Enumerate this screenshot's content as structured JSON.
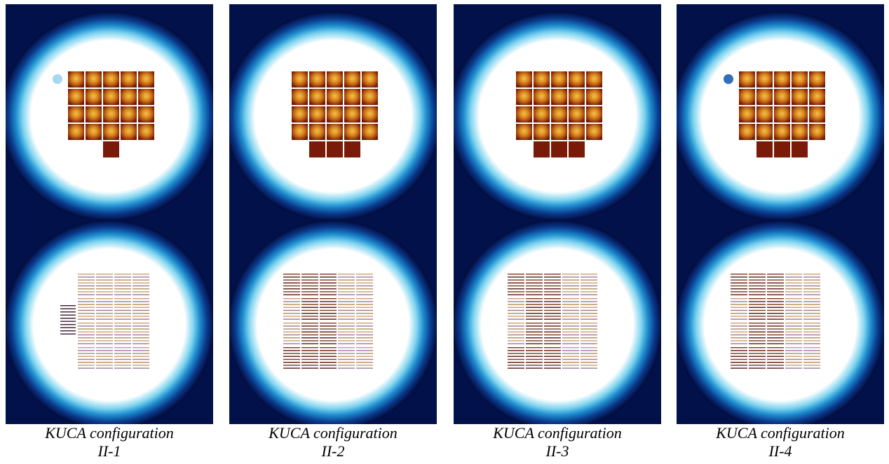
{
  "figures": [
    {
      "caption_line1": "KUCA configuration",
      "caption_line2": "II-1",
      "top_core": {
        "rows": [
          5,
          5,
          5,
          5,
          1
        ],
        "offsets": [
          0,
          0,
          0,
          0,
          2
        ]
      },
      "bottom_core": {
        "blocks_cols": 4,
        "blocks_rows": 4,
        "extra_side_block": true,
        "dark_pattern": "none"
      },
      "spot": true
    },
    {
      "caption_line1": "KUCA configuration",
      "caption_line2": "II-2",
      "top_core": {
        "rows": [
          5,
          5,
          5,
          5,
          3
        ],
        "offsets": [
          0,
          0,
          0,
          0,
          1
        ]
      },
      "bottom_core": {
        "blocks_cols": 5,
        "blocks_rows": 4,
        "extra_side_block": false,
        "dark_pattern": "left3"
      },
      "spot": false
    },
    {
      "caption_line1": "KUCA configuration",
      "caption_line2": "II-3",
      "top_core": {
        "rows": [
          5,
          5,
          5,
          5,
          3
        ],
        "offsets": [
          0,
          0,
          0,
          0,
          1
        ]
      },
      "bottom_core": {
        "blocks_cols": 5,
        "blocks_rows": 4,
        "extra_side_block": false,
        "dark_pattern": "left3"
      },
      "spot": false
    },
    {
      "caption_line1": "KUCA configuration",
      "caption_line2": "II-4",
      "top_core": {
        "rows": [
          5,
          5,
          5,
          5,
          3
        ],
        "offsets": [
          0,
          0,
          0,
          0,
          1
        ]
      },
      "bottom_core": {
        "blocks_cols": 5,
        "blocks_rows": 4,
        "extra_side_block": false,
        "dark_pattern": "left3"
      },
      "spot": true
    }
  ]
}
